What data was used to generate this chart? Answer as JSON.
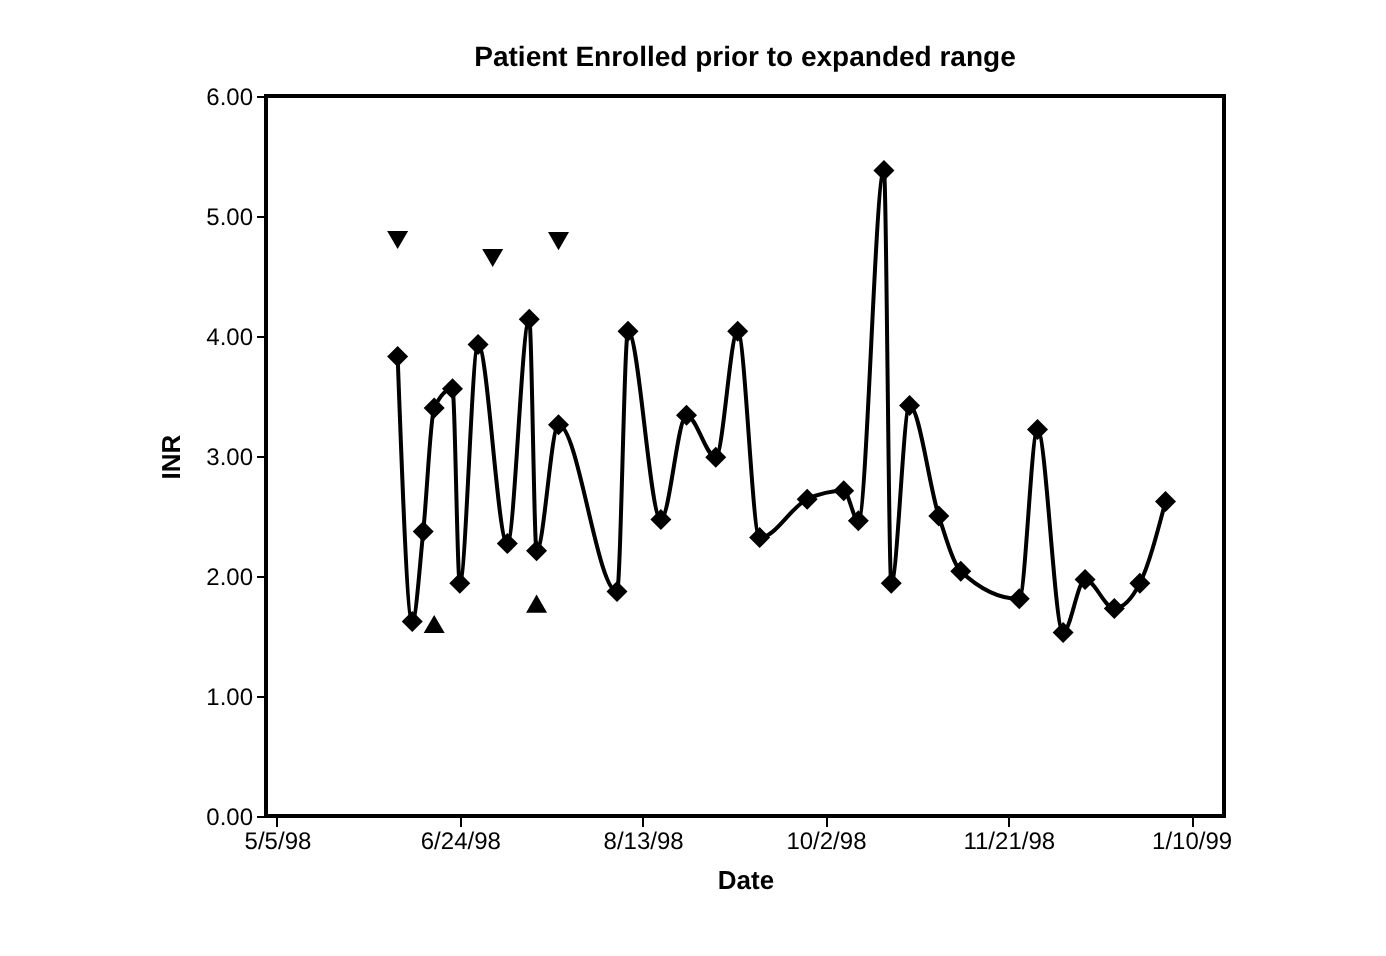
{
  "chart_data": {
    "type": "line",
    "title": "Patient Enrolled prior to expanded range",
    "xlabel": "Date",
    "ylabel": "INR",
    "xlim": [
      "1998-05-02",
      "1999-01-19"
    ],
    "xticks": [
      {
        "value": "1998-05-05",
        "label": "5/5/98"
      },
      {
        "value": "1998-06-24",
        "label": "6/24/98"
      },
      {
        "value": "1998-08-13",
        "label": "8/13/98"
      },
      {
        "value": "1998-10-02",
        "label": "10/2/98"
      },
      {
        "value": "1998-11-21",
        "label": "11/21/98"
      },
      {
        "value": "1999-01-10",
        "label": "1/10/99"
      }
    ],
    "ylim": [
      0,
      6
    ],
    "yticks": [
      {
        "value": 0,
        "label": "0.00"
      },
      {
        "value": 1,
        "label": "1.00"
      },
      {
        "value": 2,
        "label": "2.00"
      },
      {
        "value": 3,
        "label": "3.00"
      },
      {
        "value": 4,
        "label": "4.00"
      },
      {
        "value": 5,
        "label": "5.00"
      },
      {
        "value": 6,
        "label": "6.00"
      }
    ],
    "grid": false,
    "series": [
      {
        "color": "#000000",
        "marker": "diamond",
        "x": [
          "1998-06-07",
          "1998-06-11",
          "1998-06-14",
          "1998-06-17",
          "1998-06-22",
          "1998-06-24",
          "1998-06-29",
          "1998-07-07",
          "1998-07-13",
          "1998-07-15",
          "1998-07-21",
          "1998-08-06",
          "1998-08-09",
          "1998-08-18",
          "1998-08-25",
          "1998-09-02",
          "1998-09-08",
          "1998-09-14",
          "1998-09-27",
          "1998-10-07",
          "1998-10-11",
          "1998-10-18",
          "1998-10-20",
          "1998-10-25",
          "1998-11-02",
          "1998-11-08",
          "1998-11-24",
          "1998-11-29",
          "1998-12-06",
          "1998-12-12",
          "1998-12-20",
          "1998-12-27",
          "1999-01-03"
        ],
        "values": [
          3.83,
          1.62,
          2.37,
          3.4,
          3.56,
          1.94,
          3.93,
          2.27,
          4.14,
          2.21,
          3.26,
          1.87,
          4.04,
          2.47,
          3.34,
          2.99,
          4.04,
          2.32,
          2.64,
          2.71,
          2.46,
          5.38,
          1.94,
          3.42,
          2.5,
          2.04,
          1.81,
          3.22,
          1.53,
          1.97,
          1.73,
          1.94,
          2.62
        ]
      },
      {
        "type": "scatter",
        "color": "#000000",
        "marker": "triangle-down",
        "x": [
          "1998-06-07",
          "1998-07-03",
          "1998-07-21"
        ],
        "values": [
          4.8,
          4.65,
          4.79
        ]
      },
      {
        "type": "scatter",
        "color": "#000000",
        "marker": "triangle",
        "x": [
          "1998-06-17",
          "1998-07-15"
        ],
        "values": [
          1.6,
          1.77
        ]
      }
    ]
  }
}
